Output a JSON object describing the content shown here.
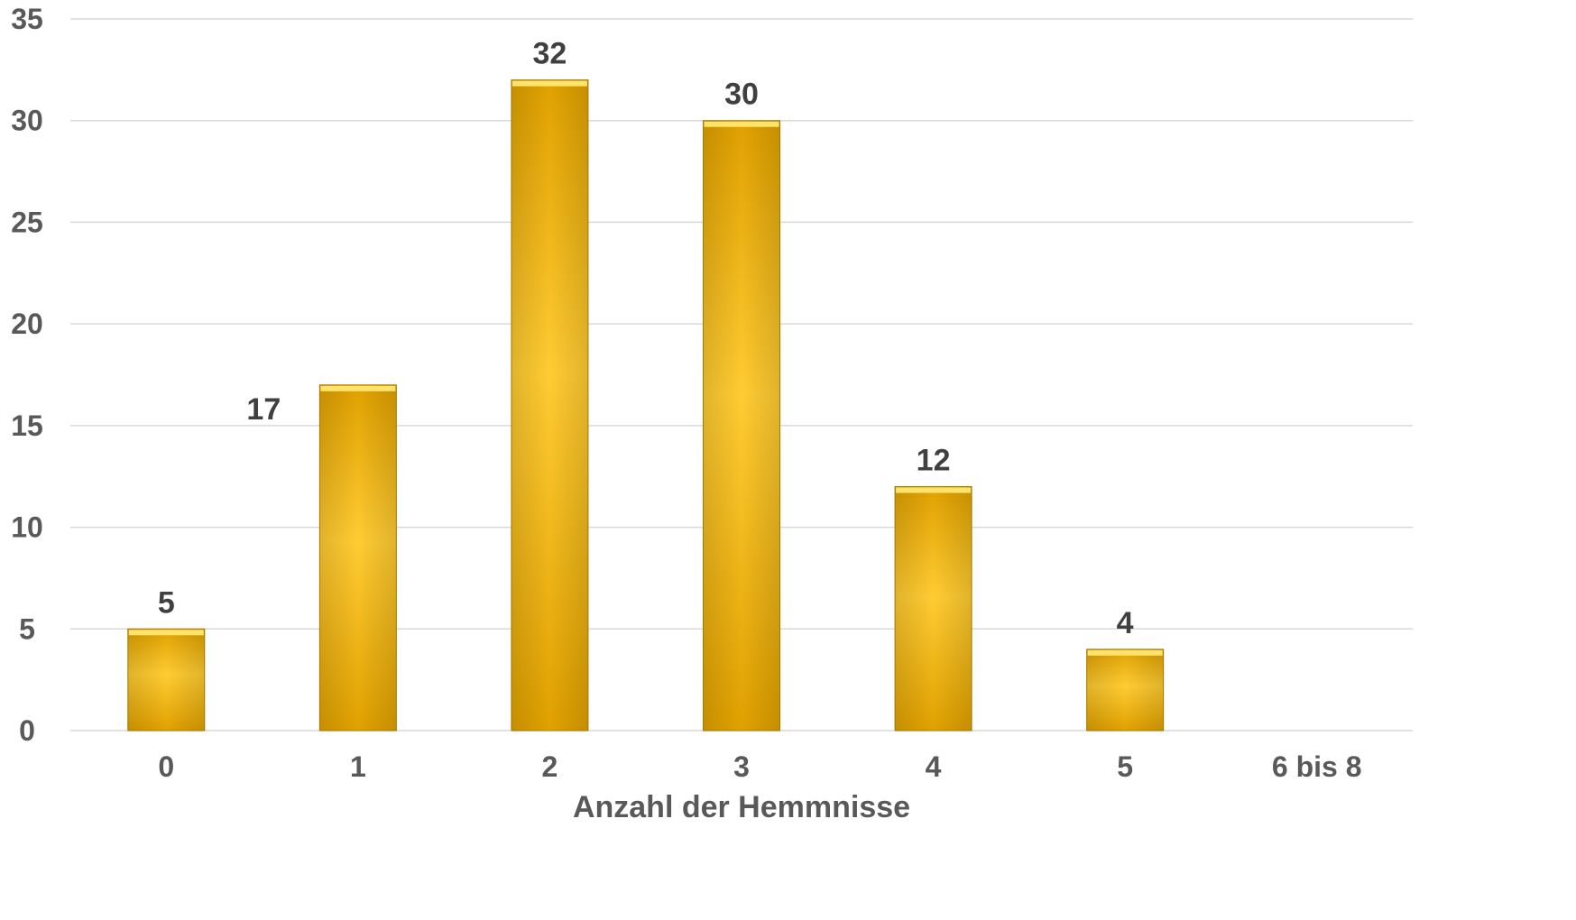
{
  "chart_data": {
    "type": "bar",
    "categories": [
      "0",
      "1",
      "2",
      "3",
      "4",
      "5",
      "6 bis 8"
    ],
    "values": [
      5,
      17,
      32,
      30,
      12,
      4,
      null
    ],
    "data_labels": [
      "5",
      "17",
      "32",
      "30",
      "12",
      "4",
      ""
    ],
    "title": "",
    "xlabel": "Anzahl der Hemmnisse",
    "ylabel": "",
    "ylim": [
      0,
      35
    ],
    "yticks": [
      "0",
      "5",
      "10",
      "15",
      "20",
      "25",
      "30",
      "35"
    ],
    "grid": true,
    "legend": "none",
    "colors": {
      "bar_light": "#ffcc33",
      "bar_mid": "#f9b90a",
      "bar_dark": "#e0a100",
      "bar_top": "#ffe36b",
      "bar_edge": "#b08000",
      "gridline": "#d9d9d9",
      "text": "#595959"
    }
  }
}
